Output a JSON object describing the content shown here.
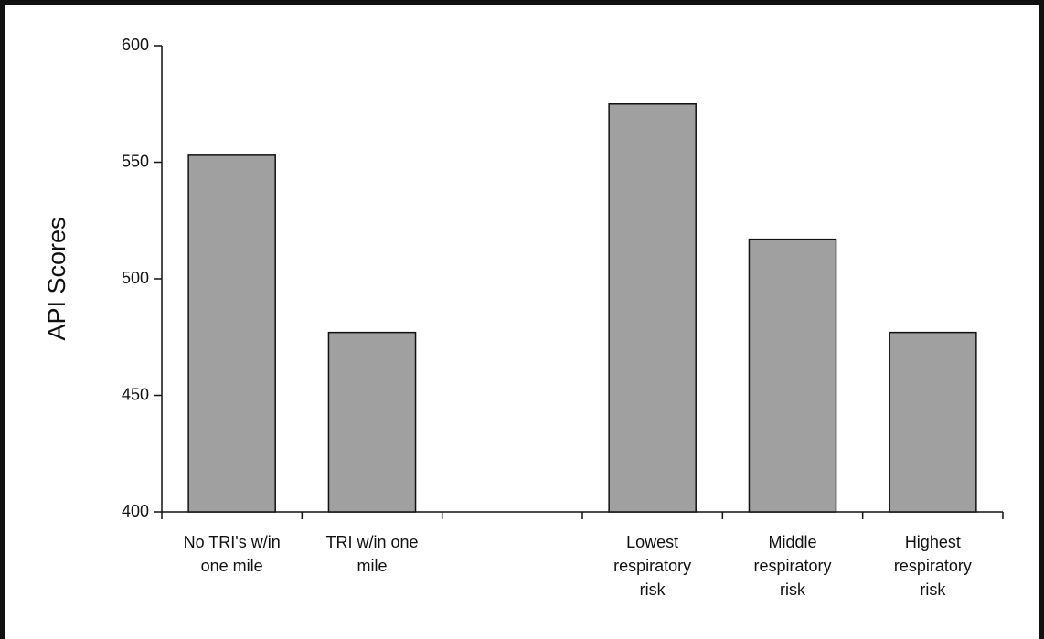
{
  "chart_data": {
    "type": "bar",
    "y_label": "API Scores",
    "categories": [
      "No TRI's w/in one mile",
      "TRI w/in one mile",
      null,
      "Lowest respiratory risk",
      "Middle respiratory risk",
      "Highest respiratory risk"
    ],
    "values": [
      553,
      477,
      null,
      575,
      517,
      477
    ],
    "color": "#a0a0a0",
    "ylim": [
      400,
      600
    ],
    "yticks": [
      400,
      450,
      500,
      550,
      600
    ],
    "grid": false
  }
}
